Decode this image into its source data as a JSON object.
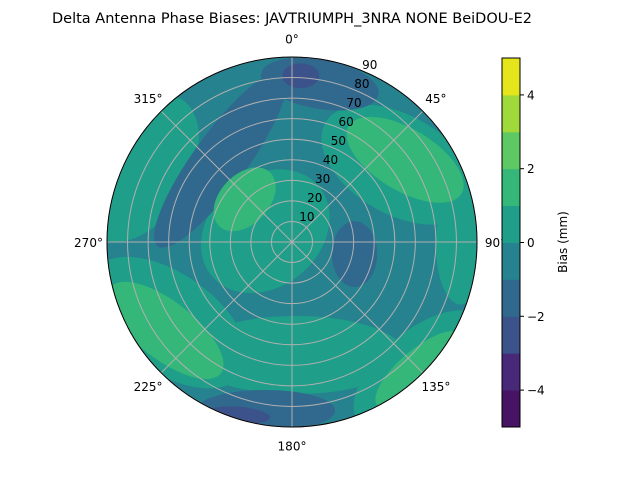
{
  "chart_data": {
    "type": "heatmap",
    "subtype": "polar-filled-contour",
    "title": "Delta Antenna Phase Biases: JAVTRIUMPH_3NRA NONE BeiDOU-E2",
    "angular_ticks": [
      {
        "az": 0,
        "label": "0°"
      },
      {
        "az": 45,
        "label": "45°"
      },
      {
        "az": 90,
        "label": "90°"
      },
      {
        "az": 135,
        "label": "135°"
      },
      {
        "az": 180,
        "label": "180°"
      },
      {
        "az": 225,
        "label": "225°"
      },
      {
        "az": 270,
        "label": "270°"
      },
      {
        "az": 315,
        "label": "315°"
      }
    ],
    "radial_ticks": [
      "10",
      "20",
      "30",
      "40",
      "50",
      "60",
      "70",
      "80",
      "90"
    ],
    "radial_range": [
      0,
      90
    ],
    "grid": true,
    "colorbar": {
      "label": "Bias (mm)",
      "range": [
        -5,
        5
      ],
      "levels": [
        -5,
        -4,
        -3,
        -2,
        -1,
        0,
        1,
        2,
        3,
        4,
        5
      ],
      "colors": [
        "#471365",
        "#482979",
        "#3b528b",
        "#31688e",
        "#26828e",
        "#1f9e89",
        "#35b779",
        "#5ec962",
        "#9fda3a",
        "#e4e51a"
      ],
      "ticks": [
        "−4",
        "−2",
        "0",
        "2",
        "4"
      ],
      "tick_values": [
        -4,
        -2,
        0,
        2,
        4
      ]
    },
    "background_level": [
      -1,
      0
    ],
    "contour_regions": [
      {
        "level": [
          0,
          1
        ],
        "az": 292,
        "zen": 14,
        "a": 34,
        "b": 27,
        "orient": -40
      },
      {
        "level": [
          0,
          1
        ],
        "az": 178,
        "zen": 55,
        "a": 53,
        "b": 19,
        "orient": 0
      },
      {
        "level": [
          0,
          1
        ],
        "az": 54,
        "zen": 64,
        "a": 41,
        "b": 24,
        "orient": 30
      },
      {
        "level": [
          0,
          1
        ],
        "az": 296,
        "zen": 82,
        "a": 24,
        "b": 39,
        "orient": 30
      },
      {
        "level": [
          0,
          1
        ],
        "az": 237,
        "zen": 72,
        "a": 44,
        "b": 24,
        "orient": 35
      },
      {
        "level": [
          0,
          1
        ],
        "az": 135,
        "zen": 88,
        "a": 39,
        "b": 19,
        "orient": -40
      },
      {
        "level": [
          0,
          1
        ],
        "az": 91,
        "zen": 82,
        "a": 12,
        "b": 29,
        "orient": 0
      },
      {
        "level": [
          -2,
          -1
        ],
        "az": 319,
        "zen": 53,
        "a": 52,
        "b": 13,
        "orient": -54
      },
      {
        "level": [
          -2,
          -1
        ],
        "az": 101,
        "zen": 31,
        "a": 11,
        "b": 16,
        "orient": 0
      },
      {
        "level": [
          -2,
          -1
        ],
        "az": 10,
        "zen": 78,
        "a": 29,
        "b": 12,
        "orient": 10
      },
      {
        "level": [
          -2,
          -1
        ],
        "az": 189,
        "zen": 83,
        "a": 34,
        "b": 10,
        "orient": 0
      },
      {
        "level": [
          -3,
          -2
        ],
        "az": 3,
        "zen": 81,
        "a": 9,
        "b": 6,
        "orient": 0
      },
      {
        "level": [
          -3,
          -2
        ],
        "az": 197,
        "zen": 88,
        "a": 15,
        "b": 4,
        "orient": 5
      },
      {
        "level": [
          1,
          2
        ],
        "az": 54,
        "zen": 68,
        "a": 32,
        "b": 15,
        "orient": 31
      },
      {
        "level": [
          1,
          2
        ],
        "az": 312,
        "zen": 31,
        "a": 18,
        "b": 12,
        "orient": -47
      },
      {
        "level": [
          1,
          2
        ],
        "az": 235,
        "zen": 75,
        "a": 34,
        "b": 14,
        "orient": 38
      },
      {
        "level": [
          1,
          2
        ],
        "az": 135,
        "zen": 88,
        "a": 27,
        "b": 10,
        "orient": -40
      }
    ]
  }
}
